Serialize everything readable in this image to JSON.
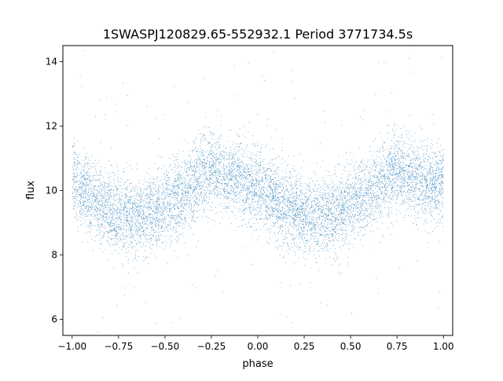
{
  "chart_data": {
    "type": "scatter",
    "title": "1SWASPJ120829.65-552932.1 Period 3771734.5s",
    "xlabel": "phase",
    "ylabel": "flux",
    "xlim": [
      -1.05,
      1.05
    ],
    "ylim": [
      5.5,
      14.5
    ],
    "x_ticks": [
      -1.0,
      -0.75,
      -0.5,
      -0.25,
      0.0,
      0.25,
      0.5,
      0.75,
      1.0
    ],
    "x_tick_labels": [
      "−1.00",
      "−0.75",
      "−0.50",
      "−0.25",
      "0.00",
      "0.25",
      "0.50",
      "0.75",
      "1.00"
    ],
    "y_ticks": [
      6,
      8,
      10,
      12,
      14
    ],
    "y_tick_labels": [
      "6",
      "8",
      "10",
      "12",
      "14"
    ],
    "grid": false,
    "legend": "none",
    "marker_color": "#1f77b4",
    "series": [
      {
        "profile_x": [
          -1.0,
          -0.95,
          -0.9,
          -0.85,
          -0.8,
          -0.75,
          -0.7,
          -0.65,
          -0.6,
          -0.55,
          -0.5,
          -0.45,
          -0.4,
          -0.35,
          -0.3,
          -0.25,
          -0.2,
          -0.15,
          -0.1,
          -0.05,
          0.0,
          0.05,
          0.1,
          0.15,
          0.2,
          0.25,
          0.3,
          0.35,
          0.4,
          0.45,
          0.5,
          0.55,
          0.6,
          0.65,
          0.7,
          0.75,
          0.8,
          0.85,
          0.9,
          0.95,
          1.0
        ],
        "profile_y": [
          10.3,
          10.1,
          9.9,
          9.6,
          9.4,
          9.3,
          9.2,
          9.2,
          9.3,
          9.4,
          9.6,
          9.7,
          9.9,
          10.2,
          10.5,
          10.6,
          10.5,
          10.4,
          10.3,
          10.2,
          10.1,
          9.9,
          9.7,
          9.5,
          9.3,
          9.2,
          9.2,
          9.2,
          9.3,
          9.4,
          9.6,
          9.7,
          9.9,
          10.2,
          10.5,
          10.6,
          10.5,
          10.4,
          10.3,
          10.2,
          10.2
        ],
        "scatter_sd": 0.6,
        "point_count": 9000
      }
    ]
  }
}
